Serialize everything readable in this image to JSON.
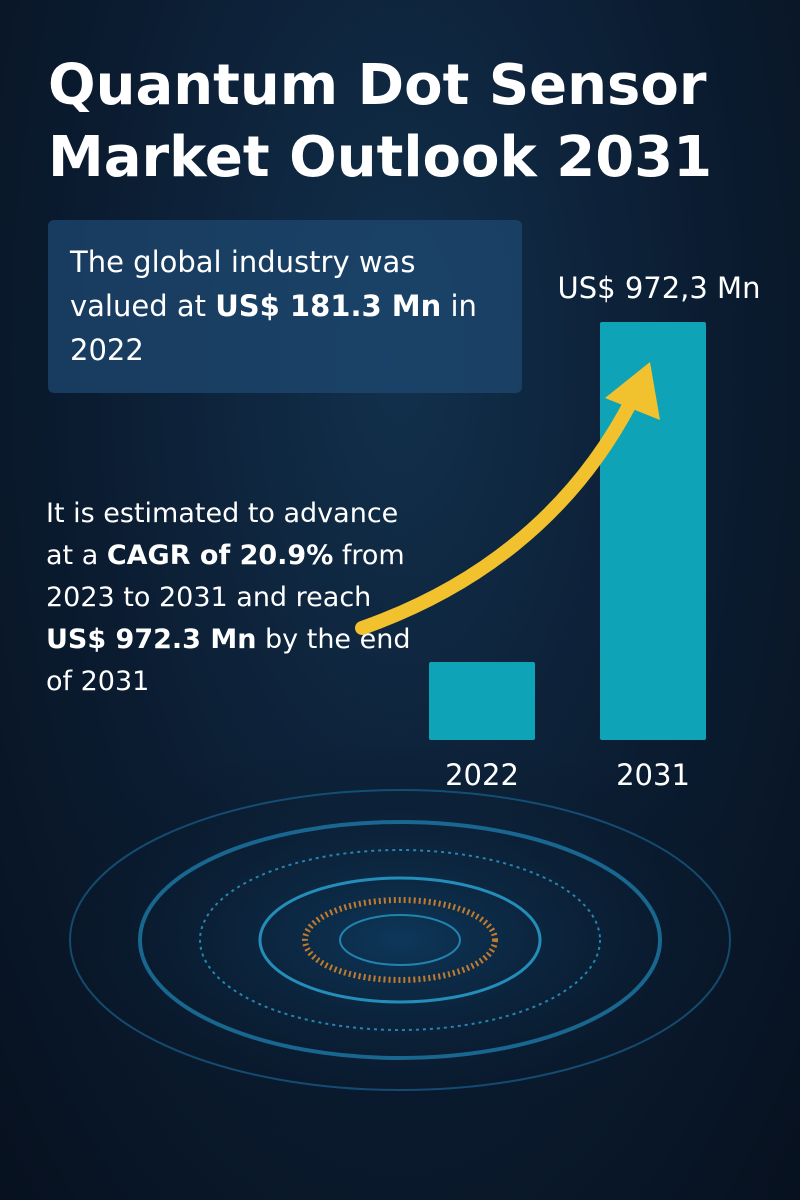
{
  "chart_data": {
    "type": "bar",
    "title": "Quantum Dot Sensor Market Outlook 2031",
    "notes": [
      {
        "segments": [
          {
            "text": "The global industry was valued at "
          },
          {
            "text": "US$ 181.3 Mn",
            "bold": true
          },
          {
            "text": " in 2022"
          }
        ]
      },
      {
        "segments": [
          {
            "text": "It is estimated to advance at a "
          },
          {
            "text": "CAGR of 20.9%",
            "bold": true
          },
          {
            "text": " from 2023 to 2031 and reach "
          },
          {
            "text": "US$ 972.3 Mn",
            "bold": true
          },
          {
            "text": " by the end of 2031"
          }
        ]
      }
    ],
    "categories": [
      "2022",
      "2031"
    ],
    "values": [
      181.3,
      972.3
    ],
    "value_labels": [
      null,
      "US$ 972,3 Mn"
    ],
    "color": "#0fa3b8",
    "arrow_color": "#f2c12e"
  }
}
